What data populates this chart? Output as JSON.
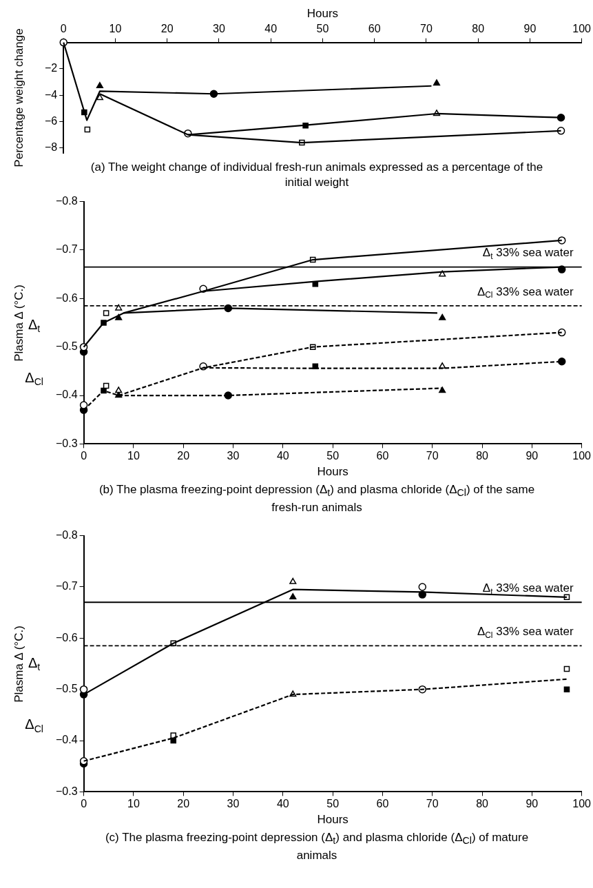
{
  "chart_data": [
    {
      "type": "scatter",
      "title": "(a) The weight change of individual fresh-run animals expressed as a percentage of the initial weight",
      "ylabel": "Percentage weight change",
      "xlabel": "Hours",
      "xlim": [
        0,
        100
      ],
      "xticks": [
        0,
        10,
        20,
        30,
        40,
        50,
        60,
        70,
        80,
        90,
        100
      ],
      "ylim": [
        -8.4,
        0
      ],
      "yticks": [
        {
          "value": -2,
          "label": "−2"
        },
        {
          "value": -4,
          "label": "−4"
        },
        {
          "value": -6,
          "label": "−6"
        },
        {
          "value": -8,
          "label": "−8"
        }
      ],
      "grid": false,
      "legend": false,
      "series": [
        {
          "type": "line",
          "marker": "none",
          "line_style": "solid",
          "color": "#000000",
          "x": [
            0,
            4.5,
            7,
            29,
            71
          ],
          "values": [
            0,
            -5.9,
            -3.7,
            -3.9,
            -3.3
          ]
        },
        {
          "type": "line",
          "marker": "none",
          "line_style": "solid",
          "color": "#000000",
          "x": [
            7,
            24,
            46,
            72,
            96
          ],
          "values": [
            -3.9,
            -7,
            -6.3,
            -5.4,
            -5.7
          ]
        },
        {
          "type": "line",
          "marker": "none",
          "line_style": "solid",
          "color": "#000000",
          "x": [
            24,
            46,
            96
          ],
          "values": [
            -7,
            -7.6,
            -6.7
          ]
        },
        {
          "marker": "circle",
          "color": "#ffffff",
          "x": [
            0,
            24,
            96
          ],
          "values": [
            0,
            -6.9,
            -6.7
          ]
        },
        {
          "marker": "circle",
          "color": "#000000",
          "x": [
            29,
            96
          ],
          "values": [
            -3.9,
            -5.7
          ]
        },
        {
          "marker": "square",
          "color": "#ffffff",
          "x": [
            4.6,
            46
          ],
          "values": [
            -6.6,
            -7.6
          ]
        },
        {
          "marker": "square",
          "color": "#000000",
          "x": [
            4,
            46.7
          ],
          "values": [
            -5.3,
            -6.3
          ]
        },
        {
          "marker": "triangle",
          "color": "#ffffff",
          "x": [
            7,
            72
          ],
          "values": [
            -4.2,
            -5.4
          ]
        },
        {
          "marker": "triangle",
          "color": "#000000",
          "x": [
            7,
            72
          ],
          "values": [
            -3.3,
            -3.1
          ]
        }
      ]
    },
    {
      "type": "scatter",
      "title": "(b) The plasma freezing-point depression (Δ$_{t}$) and plasma chloride (Δ$_{Cl}$) of the same fresh-run animals",
      "ylabel": "Plasma Δ (°C.)",
      "xlabel": "Hours",
      "xlim": [
        0,
        100
      ],
      "xticks": [
        0,
        10,
        20,
        30,
        40,
        50,
        60,
        70,
        80,
        90,
        100
      ],
      "ylim": [
        -0.3,
        -0.8
      ],
      "yticks": [
        {
          "value": -0.3,
          "label": "−0.3"
        },
        {
          "value": -0.4,
          "label": "−0.4"
        },
        {
          "value": -0.5,
          "label": "−0.5"
        },
        {
          "value": -0.6,
          "label": "−0.6"
        },
        {
          "value": -0.7,
          "label": "−0.7"
        },
        {
          "value": -0.8,
          "label": "−0.8"
        }
      ],
      "grid": false,
      "legend": false,
      "ref_lines": [
        {
          "axis": "y",
          "value": -0.665,
          "label": "Δ$_{t}$ 33% sea water",
          "line_style": "solid",
          "color": "#000000"
        },
        {
          "axis": "y",
          "value": -0.585,
          "label": "Δ$_{Cl}$ 33% sea water",
          "line_style": "dashed",
          "color": "#000000"
        }
      ],
      "annotations": [
        "Δ$_{t}$",
        "Δ$_{Cl}$"
      ],
      "series": [
        {
          "type": "line",
          "marker": "none",
          "line_style": "solid",
          "color": "#000000",
          "x": [
            0,
            4,
            8,
            29,
            71
          ],
          "values": [
            -0.5,
            -0.55,
            -0.57,
            -0.58,
            -0.57
          ]
        },
        {
          "type": "line",
          "marker": "none",
          "line_style": "solid",
          "color": "#000000",
          "x": [
            8,
            24,
            46,
            96
          ],
          "values": [
            -0.57,
            -0.615,
            -0.68,
            -0.72
          ]
        },
        {
          "type": "line",
          "marker": "none",
          "line_style": "solid",
          "color": "#000000",
          "x": [
            24,
            46.5,
            72,
            96
          ],
          "values": [
            -0.615,
            -0.635,
            -0.655,
            -0.665
          ]
        },
        {
          "type": "line",
          "marker": "none",
          "line_style": "dashed",
          "color": "#000000",
          "x": [
            0,
            4,
            7,
            29,
            72
          ],
          "values": [
            -0.37,
            -0.41,
            -0.4,
            -0.4,
            -0.415
          ]
        },
        {
          "type": "line",
          "marker": "none",
          "line_style": "dashed",
          "color": "#000000",
          "x": [
            7,
            24,
            46,
            96
          ],
          "values": [
            -0.4,
            -0.457,
            -0.5,
            -0.53
          ]
        },
        {
          "type": "line",
          "marker": "none",
          "line_style": "dashed",
          "color": "#000000",
          "x": [
            24,
            46.5,
            72,
            96
          ],
          "values": [
            -0.457,
            -0.456,
            -0.456,
            -0.47
          ]
        },
        {
          "marker": "circle",
          "color": "#ffffff",
          "x": [
            0,
            24,
            96,
            0,
            24,
            96
          ],
          "values": [
            -0.5,
            -0.62,
            -0.72,
            -0.38,
            -0.46,
            -0.53
          ]
        },
        {
          "marker": "circle",
          "color": "#000000",
          "x": [
            0,
            29,
            96,
            0,
            29,
            96
          ],
          "values": [
            -0.49,
            -0.58,
            -0.66,
            -0.37,
            -0.4,
            -0.47
          ]
        },
        {
          "marker": "square",
          "color": "#ffffff",
          "x": [
            4.5,
            46,
            4.5,
            46
          ],
          "values": [
            -0.57,
            -0.68,
            -0.42,
            -0.5
          ]
        },
        {
          "marker": "square",
          "color": "#000000",
          "x": [
            4,
            46.5,
            4,
            46.5
          ],
          "values": [
            -0.55,
            -0.63,
            -0.41,
            -0.46
          ]
        },
        {
          "marker": "triangle",
          "color": "#ffffff",
          "x": [
            7,
            72,
            7,
            72
          ],
          "values": [
            -0.58,
            -0.65,
            -0.41,
            -0.46
          ]
        },
        {
          "marker": "triangle",
          "color": "#000000",
          "x": [
            7,
            72,
            7,
            72
          ],
          "values": [
            -0.56,
            -0.56,
            -0.4,
            -0.41
          ]
        }
      ]
    },
    {
      "type": "scatter",
      "title": "(c) The plasma freezing-point depression (Δ$_{t}$) and plasma chloride (Δ$_{Cl}$) of mature animals",
      "ylabel": "Plasma Δ (°C.)",
      "xlabel": "Hours",
      "xlim": [
        0,
        100
      ],
      "xticks": [
        0,
        10,
        20,
        30,
        40,
        50,
        60,
        70,
        80,
        90,
        100
      ],
      "ylim": [
        -0.3,
        -0.8
      ],
      "yticks": [
        {
          "value": -0.3,
          "label": "−0.3"
        },
        {
          "value": -0.4,
          "label": "−0.4"
        },
        {
          "value": -0.5,
          "label": "−0.5"
        },
        {
          "value": -0.6,
          "label": "−0.6"
        },
        {
          "value": -0.7,
          "label": "−0.7"
        },
        {
          "value": -0.8,
          "label": "−0.8"
        }
      ],
      "grid": false,
      "legend": false,
      "ref_lines": [
        {
          "axis": "y",
          "value": -0.67,
          "label": "Δ$_{t}$ 33% sea water",
          "line_style": "solid",
          "color": "#000000"
        },
        {
          "axis": "y",
          "value": -0.585,
          "label": "Δ$_{Cl}$ 33% sea water",
          "line_style": "dashed",
          "color": "#000000"
        }
      ],
      "annotations": [
        "Δ$_{t}$",
        "Δ$_{Cl}$"
      ],
      "series": [
        {
          "type": "line",
          "marker": "none",
          "line_style": "solid",
          "color": "#000000",
          "x": [
            0,
            18,
            42,
            68,
            97
          ],
          "values": [
            -0.49,
            -0.59,
            -0.695,
            -0.69,
            -0.68
          ]
        },
        {
          "type": "line",
          "marker": "none",
          "line_style": "dashed",
          "color": "#000000",
          "x": [
            0,
            18,
            42,
            68,
            97
          ],
          "values": [
            -0.36,
            -0.405,
            -0.49,
            -0.5,
            -0.52
          ]
        },
        {
          "marker": "circle",
          "color": "#ffffff",
          "x": [
            0,
            68,
            0,
            68
          ],
          "values": [
            -0.5,
            -0.7,
            -0.36,
            -0.5
          ]
        },
        {
          "marker": "circle",
          "color": "#000000",
          "x": [
            0,
            68,
            0
          ],
          "values": [
            -0.49,
            -0.685,
            -0.355
          ]
        },
        {
          "marker": "square",
          "color": "#ffffff",
          "x": [
            18,
            97,
            18,
            97
          ],
          "values": [
            -0.59,
            -0.68,
            -0.41,
            -0.54
          ]
        },
        {
          "marker": "square",
          "color": "#000000",
          "x": [
            18,
            97
          ],
          "values": [
            -0.4,
            -0.5
          ]
        },
        {
          "marker": "triangle",
          "color": "#ffffff",
          "x": [
            42,
            42
          ],
          "values": [
            -0.71,
            -0.49
          ]
        },
        {
          "marker": "triangle",
          "color": "#000000",
          "x": [
            42
          ],
          "values": [
            -0.68
          ]
        }
      ]
    }
  ]
}
